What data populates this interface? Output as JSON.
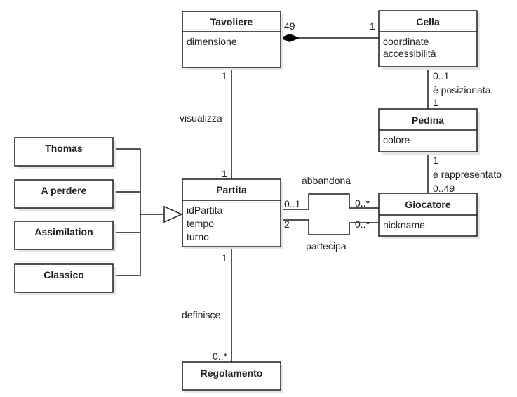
{
  "classes": {
    "tavoliere": {
      "name": "Tavoliere",
      "attributes": [
        "dimensione"
      ]
    },
    "cella": {
      "name": "Cella",
      "attributes": [
        "coordinate",
        "accessibilità"
      ]
    },
    "pedina": {
      "name": "Pedina",
      "attributes": [
        "colore"
      ]
    },
    "partita": {
      "name": "Partita",
      "attributes": [
        "idPartita",
        "tempo",
        "turno"
      ]
    },
    "giocatore": {
      "name": "Giocatore",
      "attributes": [
        "nickname"
      ]
    },
    "regolamento": {
      "name": "Regolamento",
      "attributes": []
    },
    "thomas": {
      "name": "Thomas",
      "attributes": []
    },
    "a_perdere": {
      "name": "A perdere",
      "attributes": []
    },
    "assimilation": {
      "name": "Assimilation",
      "attributes": []
    },
    "classico": {
      "name": "Classico",
      "attributes": []
    }
  },
  "associations": {
    "tavoliere_cella": {
      "mult_whole": "49",
      "mult_part": "1"
    },
    "tavoliere_partita": {
      "label": "visualizza",
      "mult_tavoliere": "1",
      "mult_partita": "1"
    },
    "cella_pedina": {
      "label": "è posizionata",
      "mult_cella": "0..1",
      "mult_pedina": "1"
    },
    "pedina_giocatore": {
      "label": "è rappresentato",
      "mult_pedina": "1",
      "mult_giocatore": "0..49"
    },
    "abbandona": {
      "label": "abbandona",
      "mult_partita": "0..1",
      "mult_giocatore": "0..*"
    },
    "partecipa": {
      "label": "partecipa",
      "mult_partita": "2",
      "mult_giocatore": "0..*"
    },
    "partita_regolamento": {
      "label": "definisce",
      "mult_partita": "1",
      "mult_regolamento": "0..*"
    }
  }
}
